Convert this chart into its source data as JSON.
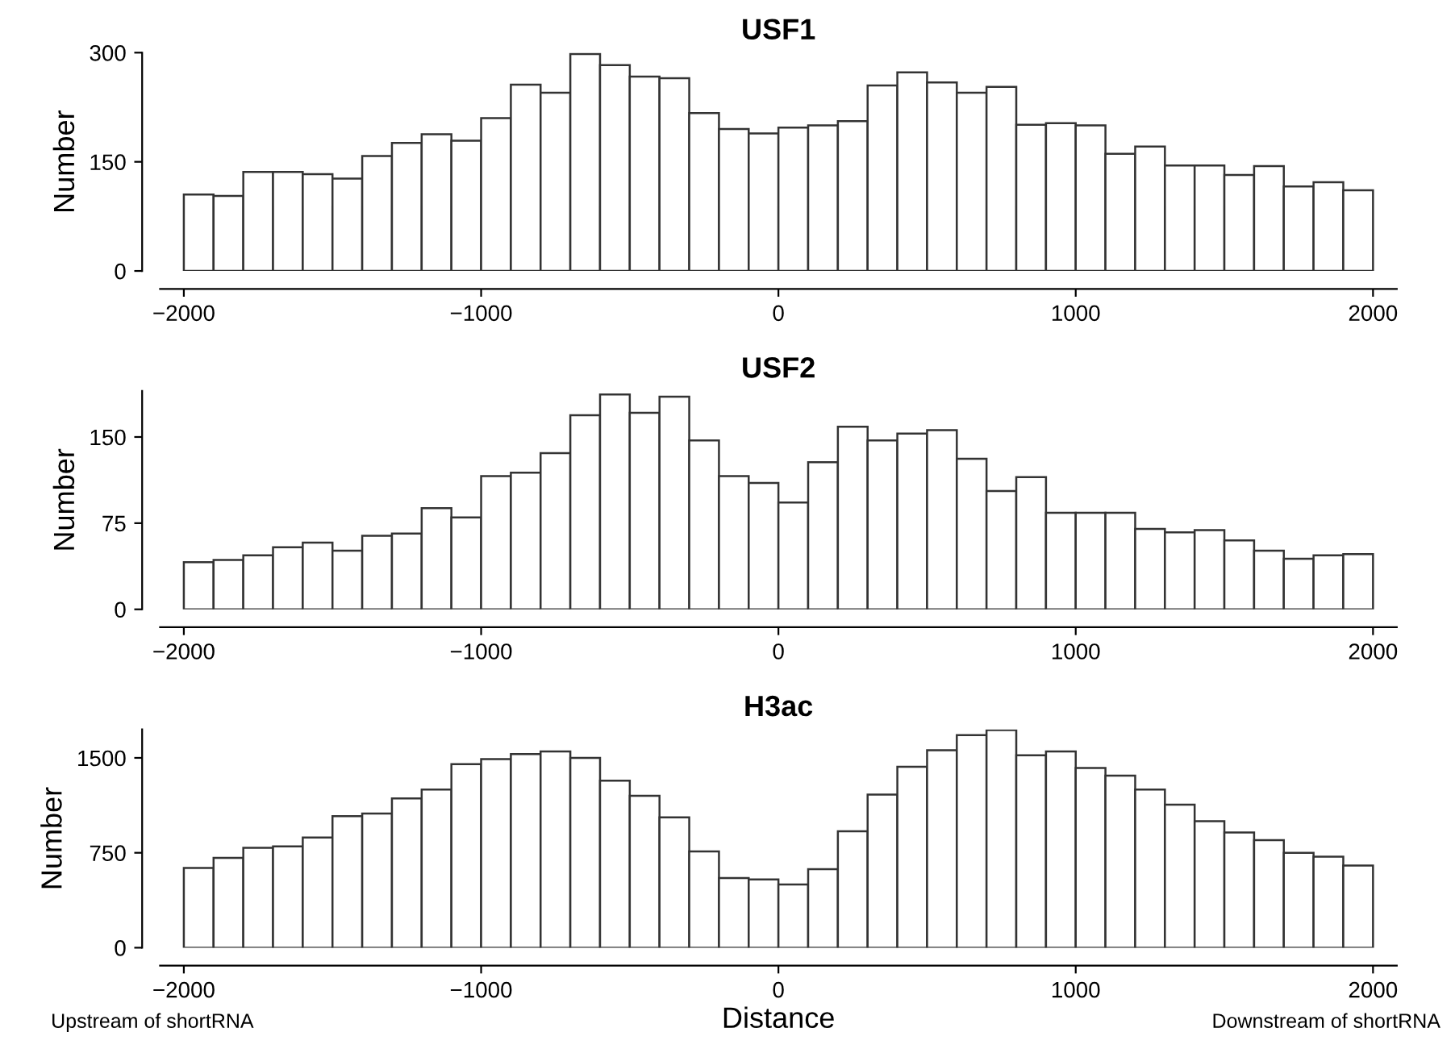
{
  "chart_data": [
    {
      "type": "histogram",
      "title": "USF1",
      "ylabel": "Number",
      "color": "#ffffff",
      "bins": [
        -2000,
        -1900,
        -1800,
        -1700,
        -1600,
        -1500,
        -1400,
        -1300,
        -1200,
        -1100,
        -1000,
        -900,
        -800,
        -700,
        -600,
        -500,
        -400,
        -300,
        -200,
        -100,
        0,
        100,
        200,
        300,
        400,
        500,
        600,
        700,
        800,
        900,
        1000,
        1100,
        1200,
        1300,
        1400,
        1500,
        1600,
        1700,
        1800,
        1900,
        2000
      ],
      "values": [
        105,
        103,
        136,
        136,
        133,
        127,
        158,
        176,
        188,
        179,
        210,
        256,
        245,
        298,
        283,
        267,
        265,
        217,
        195,
        189,
        197,
        200,
        206,
        255,
        273,
        259,
        245,
        253,
        201,
        203,
        200,
        161,
        171,
        145,
        145,
        132,
        144,
        116,
        122,
        111
      ],
      "xlim": [
        -2080,
        2080
      ],
      "ylim": [
        0,
        300
      ],
      "xticks": [
        -2000,
        -1000,
        0,
        1000,
        2000
      ],
      "yticks": [
        0,
        150,
        300
      ]
    },
    {
      "type": "histogram",
      "title": "USF2",
      "ylabel": "Number",
      "color": "#ffffff",
      "bins": [
        -2000,
        -1900,
        -1800,
        -1700,
        -1600,
        -1500,
        -1400,
        -1300,
        -1200,
        -1100,
        -1000,
        -900,
        -800,
        -700,
        -600,
        -500,
        -400,
        -300,
        -200,
        -100,
        0,
        100,
        200,
        300,
        400,
        500,
        600,
        700,
        800,
        900,
        1000,
        1100,
        1200,
        1300,
        1400,
        1500,
        1600,
        1700,
        1800,
        1900,
        2000
      ],
      "values": [
        41,
        43,
        47,
        54,
        58,
        51,
        64,
        66,
        88,
        80,
        116,
        119,
        136,
        169,
        187,
        171,
        185,
        147,
        116,
        110,
        93,
        128,
        159,
        147,
        153,
        156,
        131,
        103,
        115,
        84,
        84,
        84,
        70,
        67,
        69,
        60,
        51,
        44,
        47,
        48
      ],
      "xlim": [
        -2080,
        2080
      ],
      "ylim": [
        0,
        190
      ],
      "xticks": [
        -2000,
        -1000,
        0,
        1000,
        2000
      ],
      "yticks": [
        0,
        75,
        150
      ]
    },
    {
      "type": "histogram",
      "title": "H3ac",
      "ylabel": "Number",
      "xlabel": "Distance",
      "color": "#ffffff",
      "bins": [
        -2000,
        -1900,
        -1800,
        -1700,
        -1600,
        -1500,
        -1400,
        -1300,
        -1200,
        -1100,
        -1000,
        -900,
        -800,
        -700,
        -600,
        -500,
        -400,
        -300,
        -200,
        -100,
        0,
        100,
        200,
        300,
        400,
        500,
        600,
        700,
        800,
        900,
        1000,
        1100,
        1200,
        1300,
        1400,
        1500,
        1600,
        1700,
        1800,
        1900,
        2000
      ],
      "values": [
        630,
        710,
        790,
        800,
        870,
        1040,
        1060,
        1180,
        1250,
        1450,
        1490,
        1530,
        1550,
        1500,
        1320,
        1200,
        1030,
        760,
        550,
        540,
        500,
        620,
        920,
        1210,
        1430,
        1560,
        1680,
        1720,
        1520,
        1550,
        1420,
        1360,
        1250,
        1130,
        1000,
        910,
        850,
        750,
        720,
        650
      ],
      "xlim": [
        -2080,
        2080
      ],
      "ylim": [
        0,
        1725
      ],
      "xticks": [
        -2000,
        -1000,
        0,
        1000,
        2000
      ],
      "yticks": [
        0,
        750,
        1500
      ],
      "annotations": [
        "Upstream of shortRNA",
        "Downstream of shortRNA"
      ]
    }
  ]
}
